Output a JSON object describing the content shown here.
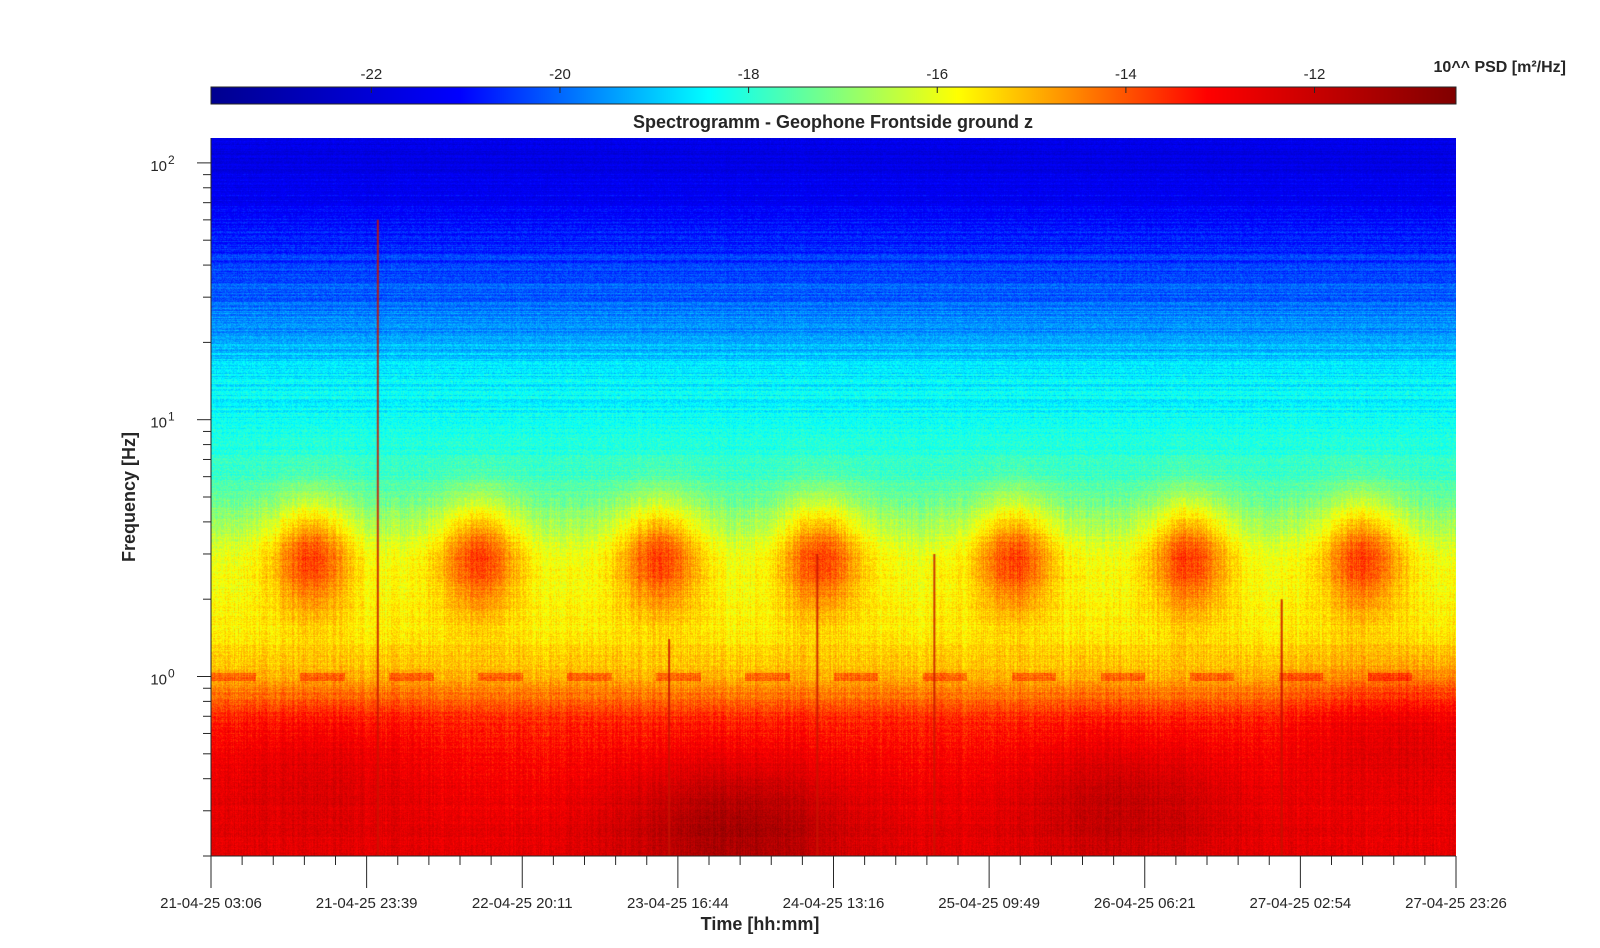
{
  "chart_data": {
    "type": "heatmap",
    "title": "Spectrogramm - Geophone Frontside ground z",
    "xlabel": "Time [hh:mm]",
    "ylabel": "Frequency [Hz]",
    "x_ticks": [
      "21-04-25 03:06",
      "21-04-25 23:39",
      "22-04-25 20:11",
      "23-04-25 16:44",
      "24-04-25 13:16",
      "25-04-25 09:49",
      "26-04-25 06:21",
      "27-04-25 02:54",
      "27-04-25 23:26"
    ],
    "y_scale": "log",
    "y_ticks": [
      {
        "value": 1,
        "base": "10",
        "exp": "0"
      },
      {
        "value": 10,
        "base": "10",
        "exp": "1"
      },
      {
        "value": 100,
        "base": "10",
        "exp": "2"
      }
    ],
    "ylim": [
      0.2,
      125
    ],
    "colorbar": {
      "label": "10^^ PSD [m²/Hz]",
      "ticks": [
        "-22",
        "-20",
        "-18",
        "-16",
        "-14",
        "-12"
      ],
      "tick_values": [
        -22,
        -20,
        -18,
        -16,
        -14,
        -12
      ],
      "range": [
        -23.7,
        -10.5
      ],
      "colormap": "jet",
      "colors": [
        "#00008f",
        "#0000ff",
        "#00ffff",
        "#ffff00",
        "#ff0000",
        "#800000"
      ]
    },
    "bands": [
      {
        "freq_hz": 100,
        "log10_psd": -21.7
      },
      {
        "freq_hz": 50,
        "log10_psd": -20.8
      },
      {
        "freq_hz": 30,
        "log10_psd": -20.0
      },
      {
        "freq_hz": 20,
        "log10_psd": -19.3
      },
      {
        "freq_hz": 15,
        "log10_psd": -18.6
      },
      {
        "freq_hz": 10,
        "log10_psd": -18.3
      },
      {
        "freq_hz": 6,
        "log10_psd": -17.8
      },
      {
        "freq_hz": 3,
        "log10_psd": -16.0
      },
      {
        "freq_hz": 1.5,
        "log10_psd": -15.6
      },
      {
        "freq_hz": 1,
        "log10_psd": -15.0
      },
      {
        "freq_hz": 0.7,
        "log10_psd": -13.6
      },
      {
        "freq_hz": 0.4,
        "log10_psd": -13.0
      },
      {
        "freq_hz": 0.2,
        "log10_psd": -12.6
      }
    ],
    "daily_activity_center_hz": 3,
    "daily_activity_time_fractions": [
      0.08,
      0.215,
      0.36,
      0.49,
      0.645,
      0.785,
      0.925
    ],
    "low_freq_maxima": [
      {
        "time_fraction": 0.42,
        "freq_hz": 0.25,
        "log10_psd": -11.0
      },
      {
        "time_fraction": 0.73,
        "freq_hz": 0.3,
        "log10_psd": -11.7
      },
      {
        "time_fraction": 0.08,
        "freq_hz": 0.35,
        "log10_psd": -12.3
      },
      {
        "time_fraction": 0.96,
        "freq_hz": 0.5,
        "log10_psd": -12.4
      }
    ],
    "spikes": [
      {
        "time_fraction": 0.134,
        "top_freq_hz": 60
      },
      {
        "time_fraction": 0.487,
        "top_freq_hz": 3
      },
      {
        "time_fraction": 0.581,
        "top_freq_hz": 3
      },
      {
        "time_fraction": 0.368,
        "top_freq_hz": 1.4
      },
      {
        "time_fraction": 0.86,
        "top_freq_hz": 2
      }
    ]
  }
}
